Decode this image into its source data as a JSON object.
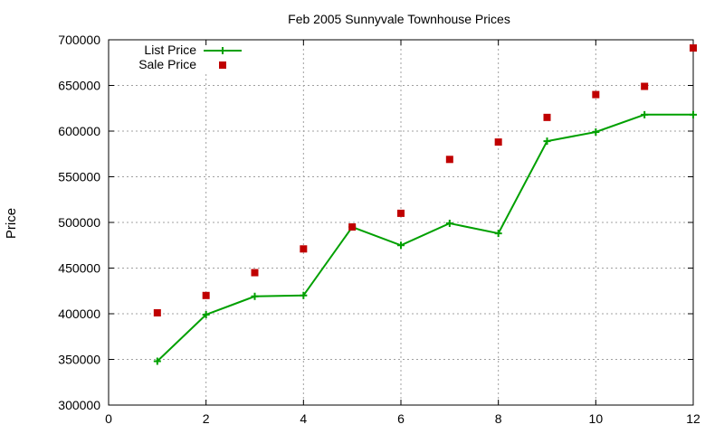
{
  "chart_data": {
    "type": "line",
    "title": "Feb 2005 Sunnyvale Townhouse Prices",
    "xlabel": "",
    "ylabel": "Price",
    "xlim": [
      0,
      12
    ],
    "ylim": [
      300000,
      700000
    ],
    "x_ticks": [
      "0",
      "2",
      "4",
      "6",
      "8",
      "10",
      "12"
    ],
    "x_tick_values": [
      0,
      2,
      4,
      6,
      8,
      10,
      12
    ],
    "y_ticks": [
      "300000",
      "350000",
      "400000",
      "450000",
      "500000",
      "550000",
      "600000",
      "650000",
      "700000"
    ],
    "y_tick_values": [
      300000,
      350000,
      400000,
      450000,
      500000,
      550000,
      600000,
      650000,
      700000
    ],
    "grid": true,
    "legend_position": "top-left",
    "series": [
      {
        "name": "List Price",
        "style": "line-with-plus-markers",
        "color": "#00a000",
        "x": [
          1,
          2,
          3,
          4,
          5,
          6,
          7,
          8,
          9,
          10,
          11,
          12
        ],
        "y": [
          348000,
          399000,
          419000,
          420000,
          495000,
          475000,
          499000,
          488000,
          589000,
          599000,
          618000,
          618000
        ]
      },
      {
        "name": "Sale Price",
        "style": "square-markers",
        "color": "#c00000",
        "x": [
          1,
          2,
          3,
          4,
          5,
          6,
          7,
          8,
          9,
          10,
          11,
          12
        ],
        "y": [
          401000,
          420000,
          445000,
          471000,
          495000,
          510000,
          569000,
          588000,
          615000,
          640000,
          649000,
          691000
        ]
      }
    ]
  }
}
